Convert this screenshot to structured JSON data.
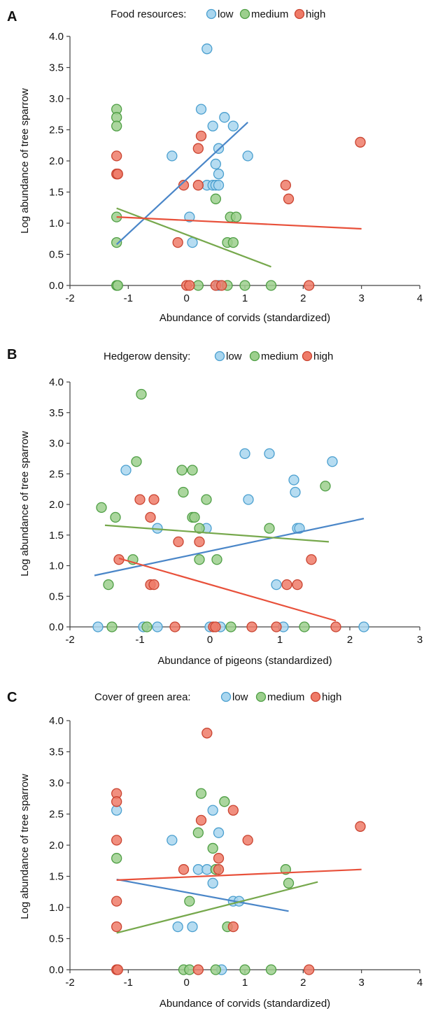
{
  "colors": {
    "low_fill": "#a9d6ef",
    "low_stroke": "#4a9fcf",
    "low_line": "#4a86c8",
    "medium_fill": "#9ccf8d",
    "medium_stroke": "#4e9e44",
    "medium_line": "#76a84c",
    "high_fill": "#ef7b68",
    "high_stroke": "#c94330",
    "high_line": "#e8503a"
  },
  "chart_data": [
    {
      "panel_label": "A",
      "type": "scatter",
      "legend_title": "Food resources:",
      "legend_labels": [
        "low",
        "medium",
        "high"
      ],
      "xlabel": "Abundance of corvids (standardized)",
      "ylabel": "Log abundance of tree sparrow",
      "xlim": [
        -2,
        4
      ],
      "ylim": [
        0,
        4
      ],
      "xticks": [
        "-2",
        "-1",
        "0",
        "1",
        "2",
        "3",
        "4"
      ],
      "yticks": [
        "0.0",
        "0.5",
        "1.0",
        "1.5",
        "2.0",
        "2.5",
        "3.0",
        "3.5",
        "4.0"
      ],
      "series": [
        {
          "name": "low",
          "color_key": "low",
          "points": [
            [
              0.35,
              3.8
            ],
            [
              0.25,
              2.83
            ],
            [
              0.45,
              2.56
            ],
            [
              0.65,
              2.7
            ],
            [
              0.8,
              2.56
            ],
            [
              -0.25,
              2.08
            ],
            [
              0.55,
              2.2
            ],
            [
              1.05,
              2.08
            ],
            [
              0.5,
              1.95
            ],
            [
              0.55,
              1.79
            ],
            [
              0.35,
              1.61
            ],
            [
              0.45,
              1.61
            ],
            [
              0.5,
              1.61
            ],
            [
              0.55,
              1.61
            ],
            [
              0.05,
              1.1
            ],
            [
              0.1,
              0.69
            ],
            [
              0.55,
              0.0
            ]
          ],
          "trend": [
            [
              -1.2,
              0.66
            ],
            [
              1.05,
              2.62
            ]
          ]
        },
        {
          "name": "medium",
          "color_key": "medium",
          "points": [
            [
              -1.2,
              2.83
            ],
            [
              -1.2,
              2.7
            ],
            [
              -1.2,
              2.56
            ],
            [
              -1.2,
              1.1
            ],
            [
              -1.2,
              0.69
            ],
            [
              -1.2,
              0.0
            ],
            [
              -1.18,
              0.0
            ],
            [
              0.5,
              1.39
            ],
            [
              0.75,
              1.1
            ],
            [
              0.85,
              1.1
            ],
            [
              0.7,
              0.69
            ],
            [
              0.8,
              0.69
            ],
            [
              0.2,
              0.0
            ],
            [
              0.7,
              0.0
            ],
            [
              1.0,
              0.0
            ],
            [
              1.45,
              0.0
            ]
          ],
          "trend": [
            [
              -1.2,
              1.24
            ],
            [
              1.45,
              0.3
            ]
          ]
        },
        {
          "name": "high",
          "color_key": "high",
          "points": [
            [
              -1.2,
              2.08
            ],
            [
              -1.2,
              1.79
            ],
            [
              -1.18,
              1.79
            ],
            [
              0.25,
              2.4
            ],
            [
              0.2,
              2.2
            ],
            [
              -0.05,
              1.61
            ],
            [
              0.2,
              1.61
            ],
            [
              1.7,
              1.61
            ],
            [
              1.75,
              1.39
            ],
            [
              2.98,
              2.3
            ],
            [
              -0.15,
              0.69
            ],
            [
              0.0,
              0.0
            ],
            [
              0.05,
              0.0
            ],
            [
              0.5,
              0.0
            ],
            [
              0.6,
              0.0
            ],
            [
              2.1,
              0.0
            ]
          ],
          "trend": [
            [
              -1.2,
              1.1
            ],
            [
              3.0,
              0.91
            ]
          ]
        }
      ]
    },
    {
      "panel_label": "B",
      "type": "scatter",
      "legend_title": "Hedgerow density:",
      "legend_labels": [
        "low",
        "medium",
        "high"
      ],
      "xlabel": "Abundance of pigeons (standardized)",
      "ylabel": "Log abundance of tree sparrow",
      "xlim": [
        -2,
        3
      ],
      "ylim": [
        0,
        4
      ],
      "xticks": [
        "-2",
        "-1",
        "0",
        "1",
        "2",
        "3"
      ],
      "yticks": [
        "0.0",
        "0.5",
        "1.0",
        "1.5",
        "2.0",
        "2.5",
        "3.0",
        "3.5",
        "4.0"
      ],
      "series": [
        {
          "name": "low",
          "color_key": "low",
          "points": [
            [
              -1.2,
              2.56
            ],
            [
              0.5,
              2.83
            ],
            [
              0.85,
              2.83
            ],
            [
              1.75,
              2.7
            ],
            [
              1.2,
              2.4
            ],
            [
              1.22,
              2.2
            ],
            [
              0.55,
              2.08
            ],
            [
              -0.75,
              1.61
            ],
            [
              -0.05,
              1.61
            ],
            [
              1.25,
              1.61
            ],
            [
              1.28,
              1.61
            ],
            [
              0.95,
              0.69
            ],
            [
              -1.6,
              0.0
            ],
            [
              -0.95,
              0.0
            ],
            [
              -0.75,
              0.0
            ],
            [
              0.0,
              0.0
            ],
            [
              0.15,
              0.0
            ],
            [
              1.05,
              0.0
            ],
            [
              2.2,
              0.0
            ]
          ],
          "trend": [
            [
              -1.65,
              0.84
            ],
            [
              2.2,
              1.77
            ]
          ]
        },
        {
          "name": "medium",
          "color_key": "medium",
          "points": [
            [
              -0.98,
              3.8
            ],
            [
              -1.05,
              2.7
            ],
            [
              -0.4,
              2.56
            ],
            [
              -0.25,
              2.56
            ],
            [
              -0.38,
              2.2
            ],
            [
              1.65,
              2.3
            ],
            [
              -0.05,
              2.08
            ],
            [
              -1.55,
              1.95
            ],
            [
              -0.25,
              1.79
            ],
            [
              -0.22,
              1.79
            ],
            [
              -1.35,
              1.79
            ],
            [
              -0.15,
              1.61
            ],
            [
              0.85,
              1.61
            ],
            [
              -1.1,
              1.1
            ],
            [
              -0.15,
              1.1
            ],
            [
              0.1,
              1.1
            ],
            [
              -1.45,
              0.69
            ],
            [
              -1.4,
              0.0
            ],
            [
              -0.9,
              0.0
            ],
            [
              0.3,
              0.0
            ],
            [
              1.35,
              0.0
            ]
          ],
          "trend": [
            [
              -1.5,
              1.66
            ],
            [
              1.7,
              1.39
            ]
          ]
        },
        {
          "name": "high",
          "color_key": "high",
          "points": [
            [
              -1.0,
              2.08
            ],
            [
              -0.8,
              2.08
            ],
            [
              -0.85,
              1.79
            ],
            [
              -0.45,
              1.39
            ],
            [
              -0.15,
              1.39
            ],
            [
              -1.3,
              1.1
            ],
            [
              1.45,
              1.1
            ],
            [
              -0.85,
              0.69
            ],
            [
              -0.8,
              0.69
            ],
            [
              1.1,
              0.69
            ],
            [
              1.25,
              0.69
            ],
            [
              -0.5,
              0.0
            ],
            [
              0.05,
              0.0
            ],
            [
              0.08,
              0.0
            ],
            [
              0.6,
              0.0
            ],
            [
              0.95,
              0.0
            ],
            [
              1.8,
              0.0
            ]
          ],
          "trend": [
            [
              -1.3,
              1.12
            ],
            [
              1.8,
              0.1
            ]
          ]
        }
      ]
    },
    {
      "panel_label": "C",
      "type": "scatter",
      "legend_title": "Cover of green area:",
      "legend_labels": [
        "low",
        "medium",
        "high"
      ],
      "xlabel": "Abundance of corvids (standardized)",
      "ylabel": "Log abundance of tree sparrow",
      "xlim": [
        -2,
        4
      ],
      "ylim": [
        0,
        4
      ],
      "xticks": [
        "-2",
        "-1",
        "0",
        "1",
        "2",
        "3",
        "4"
      ],
      "yticks": [
        "0.0",
        "0.5",
        "1.0",
        "1.5",
        "2.0",
        "2.5",
        "3.0",
        "3.5",
        "4.0"
      ],
      "series": [
        {
          "name": "low",
          "color_key": "low",
          "points": [
            [
              -1.2,
              2.56
            ],
            [
              0.45,
              2.56
            ],
            [
              -0.25,
              2.08
            ],
            [
              0.55,
              2.2
            ],
            [
              0.2,
              1.61
            ],
            [
              0.35,
              1.61
            ],
            [
              0.45,
              1.39
            ],
            [
              0.8,
              1.1
            ],
            [
              0.9,
              1.1
            ],
            [
              -0.15,
              0.69
            ],
            [
              0.1,
              0.69
            ],
            [
              0.6,
              0.0
            ]
          ],
          "trend": [
            [
              -1.2,
              1.45
            ],
            [
              1.75,
              0.94
            ]
          ]
        },
        {
          "name": "medium",
          "color_key": "medium",
          "points": [
            [
              0.25,
              2.83
            ],
            [
              0.65,
              2.7
            ],
            [
              0.2,
              2.2
            ],
            [
              0.45,
              1.95
            ],
            [
              -1.2,
              1.79
            ],
            [
              0.5,
              1.61
            ],
            [
              1.7,
              1.61
            ],
            [
              1.75,
              1.39
            ],
            [
              0.05,
              1.1
            ],
            [
              0.7,
              0.69
            ],
            [
              -0.05,
              0.0
            ],
            [
              0.05,
              0.0
            ],
            [
              0.5,
              0.0
            ],
            [
              1.0,
              0.0
            ],
            [
              1.45,
              0.0
            ]
          ],
          "trend": [
            [
              -1.2,
              0.59
            ],
            [
              2.25,
              1.41
            ]
          ]
        },
        {
          "name": "high",
          "color_key": "high",
          "points": [
            [
              0.35,
              3.8
            ],
            [
              -1.2,
              2.83
            ],
            [
              -1.2,
              2.7
            ],
            [
              0.25,
              2.4
            ],
            [
              0.8,
              2.56
            ],
            [
              -1.2,
              2.08
            ],
            [
              1.05,
              2.08
            ],
            [
              0.55,
              1.79
            ],
            [
              -0.05,
              1.61
            ],
            [
              0.55,
              1.61
            ],
            [
              2.98,
              2.3
            ],
            [
              -1.2,
              1.1
            ],
            [
              -1.2,
              0.69
            ],
            [
              0.8,
              0.69
            ],
            [
              -1.2,
              0.0
            ],
            [
              -1.18,
              0.0
            ],
            [
              0.2,
              0.0
            ],
            [
              2.1,
              0.0
            ]
          ],
          "trend": [
            [
              -1.2,
              1.44
            ],
            [
              3.0,
              1.61
            ]
          ]
        }
      ]
    }
  ]
}
